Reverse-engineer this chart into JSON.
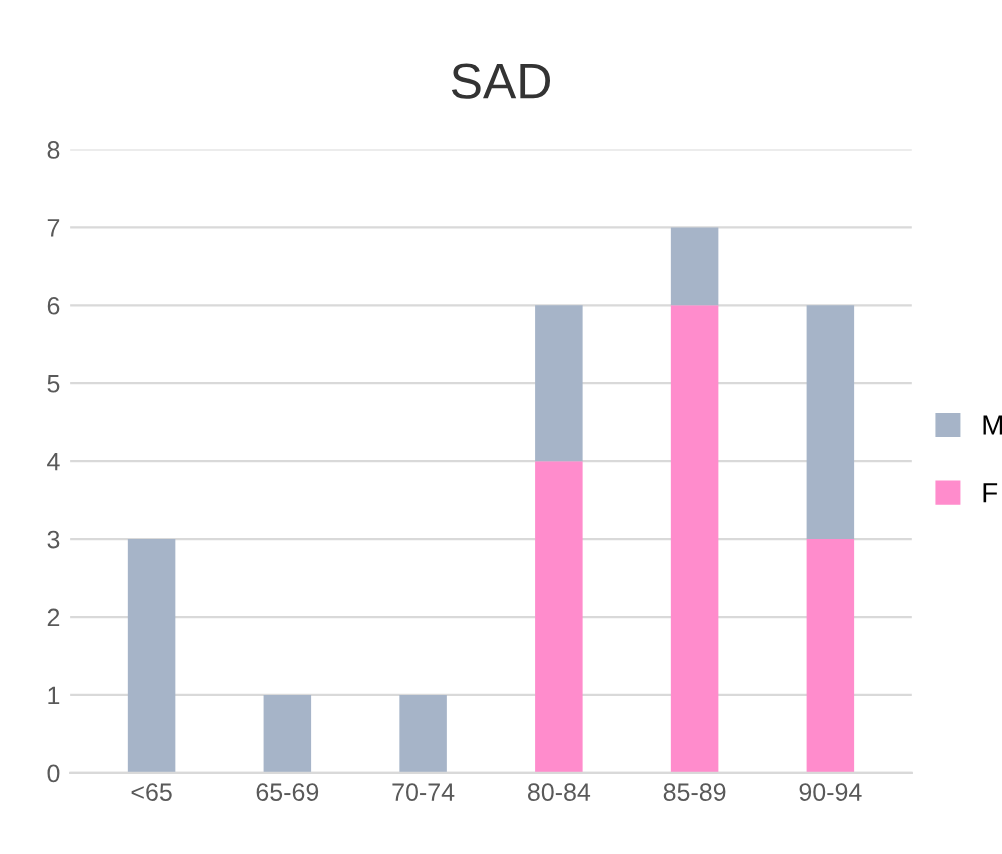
{
  "chart_data": {
    "type": "bar",
    "title": "SAD",
    "stacked": true,
    "categories": [
      "<65",
      "65-69",
      "70-74",
      "80-84",
      "85-89",
      "90-94"
    ],
    "series": [
      {
        "name": "F",
        "color": "#ff8ccc",
        "values": [
          0,
          0,
          0,
          4,
          6,
          3
        ]
      },
      {
        "name": "M",
        "color": "#a6b4c8",
        "values": [
          3,
          1,
          1,
          2,
          1,
          3
        ]
      }
    ],
    "ylim": [
      0,
      8
    ],
    "yticks": [
      0,
      1,
      2,
      3,
      4,
      5,
      6,
      7,
      8
    ],
    "grid": "y",
    "legend": "right"
  }
}
